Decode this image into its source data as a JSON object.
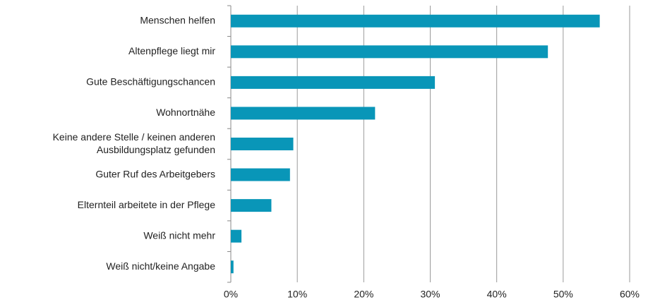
{
  "chart_data": {
    "type": "bar",
    "orientation": "horizontal",
    "categories": [
      "Menschen helfen",
      "Altenpflege liegt mir",
      "Gute Beschäftigungschancen",
      "Wohnortnähe",
      "Keine andere Stelle / keinen anderen\nAusbildungsplatz gefunden",
      "Guter Ruf des Arbeitgebers",
      "Elternteil arbeitete in der Pflege",
      "Weiß nicht mehr",
      "Weiß nicht/keine Angabe"
    ],
    "values": [
      55.5,
      47.7,
      30.7,
      21.7,
      9.4,
      8.9,
      6.1,
      1.6,
      0.4
    ],
    "color": "#0996b8",
    "xlim": [
      0,
      60
    ],
    "xticks": [
      {
        "value": 0,
        "label": "0%"
      },
      {
        "value": 10,
        "label": "10%"
      },
      {
        "value": 20,
        "label": "20%"
      },
      {
        "value": 30,
        "label": "30%"
      },
      {
        "value": 40,
        "label": "40%"
      },
      {
        "value": 50,
        "label": "50%"
      },
      {
        "value": 60,
        "label": "60%"
      }
    ],
    "grid": true
  }
}
